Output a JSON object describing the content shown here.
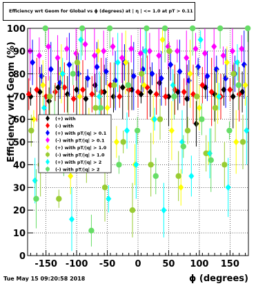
{
  "chart_data": {
    "type": "scatter",
    "title": "Efficiency wrt Geom for Global vs ϕ (degrees) at |  η | <= 1.0 at pT > 0.11",
    "xlabel": "ϕ (degrees)",
    "ylabel": "Efficiency wrt Geom (%)",
    "xlim": [
      -180,
      180
    ],
    "ylim": [
      0,
      100
    ],
    "xticks": [
      "-150",
      "-100",
      "-50",
      "0",
      "50",
      "100",
      "150"
    ],
    "yticks": [
      "0",
      "10",
      "20",
      "30",
      "40",
      "50",
      "60",
      "70",
      "80",
      "90",
      "100"
    ],
    "grid": true,
    "legend_position": "middle-left",
    "series": [
      {
        "name": "(+) with",
        "color": "#000000",
        "marker": "diamond",
        "x": [
          -175,
          -160,
          -145,
          -130,
          -115,
          -100,
          -85,
          -70,
          -55,
          -40,
          -25,
          -10,
          5,
          20,
          35,
          50,
          65,
          80,
          95,
          110,
          125,
          140,
          155,
          170
        ],
        "y": [
          70,
          72,
          68,
          74,
          71,
          73,
          69,
          75,
          72,
          70,
          74,
          73,
          71,
          72,
          76,
          70,
          72,
          69,
          58,
          74,
          71,
          73,
          70,
          72
        ]
      },
      {
        "name": "(-) with",
        "color": "#ff0000",
        "marker": "diamond",
        "x": [
          -178,
          -165,
          -150,
          -135,
          -120,
          -105,
          -90,
          -75,
          -60,
          -45,
          -30,
          -15,
          0,
          15,
          30,
          45,
          60,
          75,
          90,
          105,
          120,
          135,
          150,
          165
        ],
        "y": [
          71,
          73,
          70,
          72,
          74,
          69,
          73,
          71,
          72,
          75,
          70,
          73,
          72,
          74,
          71,
          70,
          73,
          72,
          71,
          75,
          72,
          70,
          73,
          71
        ]
      },
      {
        "name": "(+) with pT/|q| > 0.1",
        "color": "#0000ff",
        "marker": "diamond",
        "x": [
          -172,
          -157,
          -142,
          -127,
          -112,
          -97,
          -82,
          -67,
          -52,
          -37,
          -22,
          -7,
          8,
          23,
          38,
          53,
          68,
          83,
          98,
          113,
          128,
          143,
          158,
          173
        ],
        "y": [
          85,
          79,
          82,
          76,
          84,
          80,
          78,
          83,
          81,
          77,
          85,
          79,
          82,
          80,
          78,
          84,
          81,
          77,
          83,
          79,
          82,
          78,
          80,
          84
        ]
      },
      {
        "name": "(-) with pT/|q| > 0.1",
        "color": "#ff00ff",
        "marker": "diamond",
        "x": [
          -176,
          -161,
          -146,
          -131,
          -116,
          -101,
          -86,
          -71,
          -56,
          -41,
          -26,
          -11,
          4,
          19,
          34,
          49,
          64,
          79,
          94,
          109,
          124,
          139,
          154,
          169
        ],
        "y": [
          90,
          88,
          92,
          87,
          91,
          89,
          93,
          88,
          90,
          92,
          87,
          91,
          89,
          90,
          88,
          92,
          90,
          87,
          91,
          89,
          92,
          88,
          90,
          91
        ]
      },
      {
        "name": "(+) with pT/|q| > 1.0",
        "color": "#ffff00",
        "marker": "diamond",
        "x": [
          -170,
          -155,
          -140,
          -125,
          -110,
          -95,
          -80,
          -65,
          -50,
          -35,
          -20,
          -5,
          10,
          25,
          40,
          55,
          70,
          85,
          100,
          115,
          130,
          145,
          160,
          175
        ],
        "y": [
          60,
          75,
          45,
          80,
          35,
          70,
          55,
          90,
          65,
          50,
          85,
          40,
          75,
          60,
          95,
          55,
          30,
          80,
          65,
          45,
          70,
          85,
          50,
          75
        ]
      },
      {
        "name": "(-) with pT/|q| > 1.0",
        "color": "#99cc33",
        "marker": "circle",
        "x": [
          -174,
          -159,
          -144,
          -129,
          -114,
          -99,
          -84,
          -69,
          -54,
          -39,
          -24,
          -9,
          6,
          21,
          36,
          51,
          66,
          81,
          96,
          111,
          126,
          141,
          156,
          171
        ],
        "y": [
          55,
          40,
          70,
          25,
          60,
          85,
          45,
          65,
          30,
          75,
          50,
          20,
          80,
          40,
          60,
          90,
          35,
          55,
          70,
          45,
          65,
          40,
          80,
          50
        ]
      },
      {
        "name": "(+) with pT/|q| > 2",
        "color": "#00ffff",
        "marker": "diamond",
        "x": [
          -168,
          -153,
          -138,
          -123,
          -108,
          -93,
          -78,
          -63,
          -48,
          -33,
          -18,
          -3,
          12,
          27,
          42,
          57,
          72,
          87,
          102,
          117,
          132,
          147,
          162,
          177
        ],
        "y": [
          33,
          65,
          50,
          80,
          16,
          95,
          45,
          70,
          25,
          85,
          55,
          40,
          90,
          60,
          20,
          75,
          50,
          35,
          95,
          45,
          70,
          30,
          85,
          55
        ]
      },
      {
        "name": "(-) with pT/|q| > 2",
        "color": "#66dd66",
        "marker": "circle",
        "x": [
          -166,
          -151,
          -136,
          -121,
          -106,
          -91,
          -76,
          -61,
          -46,
          -31,
          -16,
          -1,
          14,
          29,
          44,
          59,
          74,
          89,
          104,
          119,
          134,
          149,
          164,
          179
        ],
        "y": [
          25,
          100,
          60,
          45,
          80,
          100,
          11,
          65,
          100,
          40,
          75,
          55,
          100,
          35,
          100,
          70,
          48,
          100,
          60,
          42,
          100,
          55,
          75,
          100
        ]
      }
    ]
  },
  "footer": {
    "timestamp": "Tue May 15 09:20:58 2018"
  }
}
